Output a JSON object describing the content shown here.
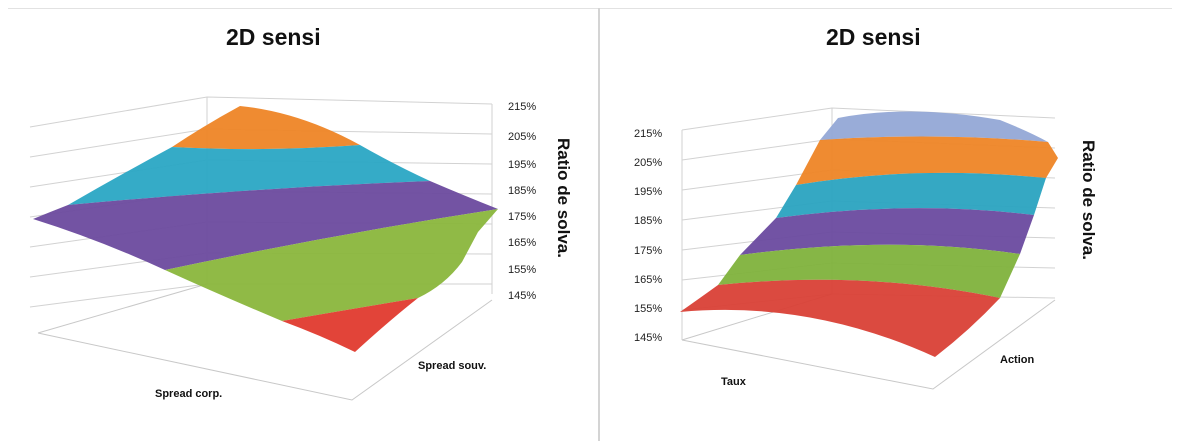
{
  "chart_data": [
    {
      "type": "surface",
      "title": "2D sensi",
      "x_label": "Spread corp.",
      "y_label": "Spread souv.",
      "z_label": "Ratio de solva.",
      "z_ticks": [
        "145%",
        "155%",
        "165%",
        "175%",
        "185%",
        "195%",
        "205%",
        "215%"
      ],
      "zlim": [
        145,
        215
      ],
      "bands": [
        {
          "range": "165%-175%",
          "color": "#e03a2e"
        },
        {
          "range": "175%-185%",
          "color": "#8ab63c"
        },
        {
          "range": "185%-195%",
          "color": "#6b4a9e"
        },
        {
          "range": "195%-205%",
          "color": "#2aa6c4"
        },
        {
          "range": "205%-215%",
          "color": "#ee8526"
        }
      ]
    },
    {
      "type": "surface",
      "title": "2D sensi",
      "x_label": "Taux",
      "y_label": "Action",
      "z_label": "Ratio de solva.",
      "z_ticks": [
        "145%",
        "155%",
        "165%",
        "175%",
        "185%",
        "195%",
        "205%",
        "215%"
      ],
      "zlim": [
        145,
        215
      ],
      "bands": [
        {
          "range": "155%-165%",
          "color": "#d94036"
        },
        {
          "range": "165%-175%",
          "color": "#7fb23c"
        },
        {
          "range": "175%-185%",
          "color": "#6a4a9f"
        },
        {
          "range": "185%-195%",
          "color": "#2aa3c0"
        },
        {
          "range": "195%-205%",
          "color": "#ee8526"
        },
        {
          "range": "205%-215%",
          "color": "#93a8d6"
        }
      ]
    }
  ]
}
